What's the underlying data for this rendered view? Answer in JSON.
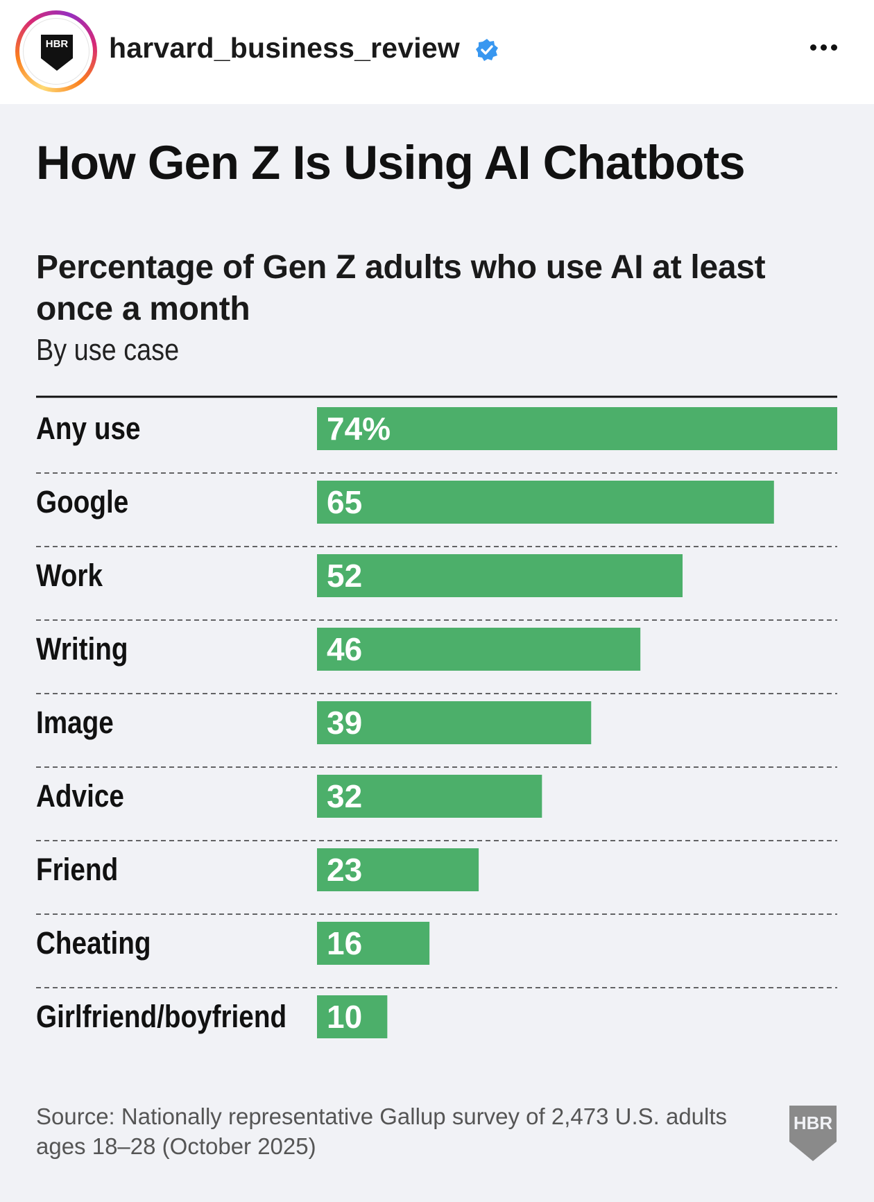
{
  "post": {
    "username": "harvard_business_review",
    "verified": true,
    "avatar_logo_text": "HBR"
  },
  "icons": {
    "avatar": "hbr-shield-logo",
    "verified": "verified-badge-icon",
    "more": "more-options-icon",
    "watermark": "hbr-shield-logo"
  },
  "colors": {
    "bar": "#4caf6a",
    "bar_label": "#ffffff",
    "background": "#f1f2f6",
    "verified": "#3897f0"
  },
  "chart_data": {
    "type": "bar",
    "orientation": "horizontal",
    "title": "How Gen Z Is Using AI Chatbots",
    "subtitle": "Percentage of Gen Z adults who use AI at least once a month",
    "subtitle2": "By use case",
    "categories": [
      "Any use",
      "Google",
      "Work",
      "Writing",
      "Image",
      "Advice",
      "Friend",
      "Cheating",
      "Girlfriend/boyfriend"
    ],
    "values": [
      74,
      65,
      52,
      46,
      39,
      32,
      23,
      16,
      10
    ],
    "value_labels": [
      "74%",
      "65",
      "52",
      "46",
      "39",
      "32",
      "23",
      "16",
      "10"
    ],
    "unit": "%",
    "xlim": [
      0,
      74
    ],
    "grid": false,
    "legend": "none",
    "source": "Source: Nationally representative Gallup survey of 2,473 U.S. adults ages 18–28 (October 2025)"
  },
  "watermark": {
    "text": "HBR"
  }
}
